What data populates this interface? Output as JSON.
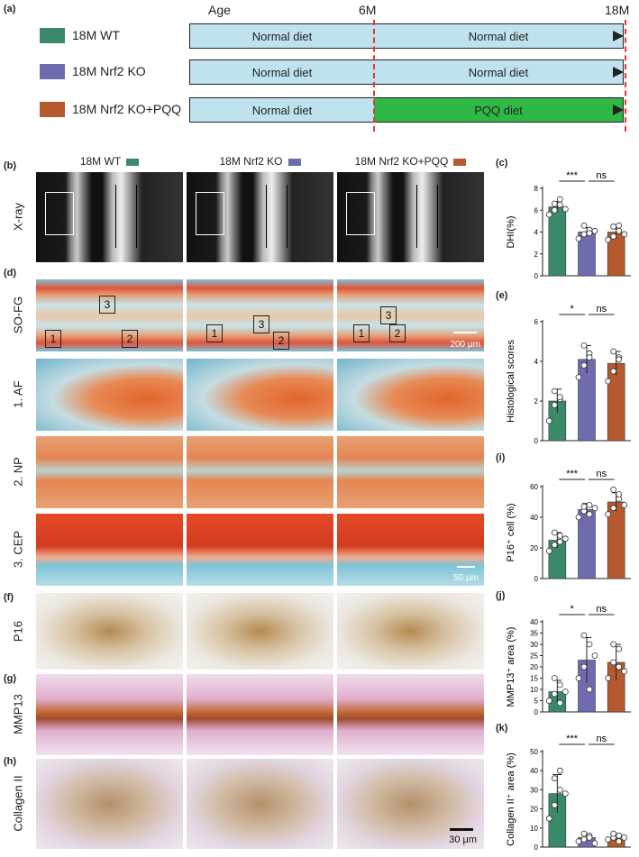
{
  "panel_labels": {
    "a": "(a)",
    "b": "(b)",
    "c": "(c)",
    "d": "(d)",
    "e": "(e)",
    "f": "(f)",
    "g": "(g)",
    "h": "(h)",
    "i": "(i)",
    "j": "(j)",
    "k": "(k)"
  },
  "timeline": {
    "age_label": "Age",
    "mark_6m": "6M",
    "mark_18m": "18M",
    "groups": [
      {
        "name": "18M WT",
        "color": "#3a8a6a",
        "seg1": "Normal diet",
        "seg2": "Normal diet",
        "seg2_color": "#bfe3ee"
      },
      {
        "name": "18M Nrf2 KO",
        "color": "#6e6cae",
        "seg1": "Normal diet",
        "seg2": "Normal diet",
        "seg2_color": "#bfe3ee"
      },
      {
        "name": "18M Nrf2 KO+PQQ",
        "color": "#b55a2e",
        "seg1": "Normal diet",
        "seg2": "PQQ diet",
        "seg2_color": "#2fb845"
      }
    ]
  },
  "columns": [
    {
      "label": "18M WT",
      "color": "#3a8a6a"
    },
    {
      "label": "18M Nrf2 KO",
      "color": "#6e6cae"
    },
    {
      "label": "18M Nrf2 KO+PQQ",
      "color": "#b55a2e"
    }
  ],
  "rows": {
    "xray": "X-ray",
    "sofg": "SO-FG",
    "af": "1. AF",
    "np": "2. NP",
    "cep": "3. CEP",
    "p16": "P16",
    "mmp13": "MMP13",
    "col2": "Collagen II"
  },
  "scale_bars": {
    "sofg": "200 μm",
    "cep": "50 μm",
    "col2": "30 μm"
  },
  "box_numbers": [
    "1",
    "2",
    "3"
  ],
  "chart_data": [
    {
      "id": "c",
      "type": "bar",
      "ylabel": "DHI(%)",
      "ylim": [
        0,
        8
      ],
      "yticks": [
        0,
        2,
        4,
        6,
        8
      ],
      "values": [
        6.3,
        4.0,
        4.0
      ],
      "errors": [
        0.5,
        0.4,
        0.6
      ],
      "points": [
        [
          5.6,
          6.0,
          6.5,
          6.6,
          7.0,
          6.1
        ],
        [
          3.4,
          3.8,
          4.2,
          4.6,
          3.9,
          4.1
        ],
        [
          3.3,
          3.6,
          4.1,
          4.5,
          4.6,
          3.8
        ]
      ],
      "sig": [
        {
          "a": 0,
          "b": 1,
          "text": "***"
        },
        {
          "a": 1,
          "b": 2,
          "text": "ns"
        }
      ]
    },
    {
      "id": "e",
      "type": "bar",
      "ylabel": "Histological scores",
      "ylim": [
        0,
        6
      ],
      "yticks": [
        0,
        2,
        4,
        6
      ],
      "values": [
        2.0,
        4.1,
        3.9
      ],
      "errors": [
        0.6,
        0.7,
        0.6
      ],
      "points": [
        [
          1.0,
          1.8,
          2.1,
          2.5,
          2.2
        ],
        [
          3.2,
          3.8,
          4.4,
          4.8,
          4.2
        ],
        [
          3.0,
          3.5,
          4.2,
          4.5,
          4.1
        ]
      ],
      "sig": [
        {
          "a": 0,
          "b": 1,
          "text": "*"
        },
        {
          "a": 1,
          "b": 2,
          "text": "ns"
        }
      ]
    },
    {
      "id": "i",
      "type": "bar",
      "ylabel": "P16⁺ cell (%)",
      "ylim": [
        0,
        60
      ],
      "yticks": [
        0,
        20,
        40,
        60
      ],
      "values": [
        25,
        45,
        50
      ],
      "errors": [
        5,
        4,
        6
      ],
      "points": [
        [
          18,
          22,
          28,
          30,
          24,
          26
        ],
        [
          40,
          44,
          48,
          47,
          42,
          46
        ],
        [
          42,
          46,
          52,
          58,
          55,
          48
        ]
      ],
      "sig": [
        {
          "a": 0,
          "b": 1,
          "text": "***"
        },
        {
          "a": 1,
          "b": 2,
          "text": "ns"
        }
      ]
    },
    {
      "id": "j",
      "type": "bar",
      "ylabel": "MMP13⁺ area (%)",
      "ylim": [
        0,
        40
      ],
      "yticks": [
        0,
        5,
        10,
        15,
        20,
        25,
        30,
        35,
        40
      ],
      "values": [
        9,
        23,
        22
      ],
      "errors": [
        5,
        10,
        8
      ],
      "points": [
        [
          5,
          8,
          12,
          15,
          4,
          9
        ],
        [
          15,
          20,
          30,
          34,
          10,
          25
        ],
        [
          15,
          22,
          28,
          30,
          20,
          18
        ]
      ],
      "sig": [
        {
          "a": 0,
          "b": 1,
          "text": "*"
        },
        {
          "a": 1,
          "b": 2,
          "text": "ns"
        }
      ]
    },
    {
      "id": "k",
      "type": "bar",
      "ylabel": "Collagen II⁺ area (%)",
      "ylim": [
        0,
        50
      ],
      "yticks": [
        0,
        10,
        20,
        30,
        40,
        50
      ],
      "values": [
        28,
        5,
        5
      ],
      "errors": [
        10,
        2,
        2
      ],
      "points": [
        [
          15,
          22,
          30,
          36,
          40,
          28
        ],
        [
          3,
          4,
          6,
          7,
          5,
          2
        ],
        [
          4,
          5,
          6,
          7,
          3,
          5
        ]
      ],
      "sig": [
        {
          "a": 0,
          "b": 1,
          "text": "***"
        },
        {
          "a": 1,
          "b": 2,
          "text": "ns"
        }
      ]
    }
  ]
}
